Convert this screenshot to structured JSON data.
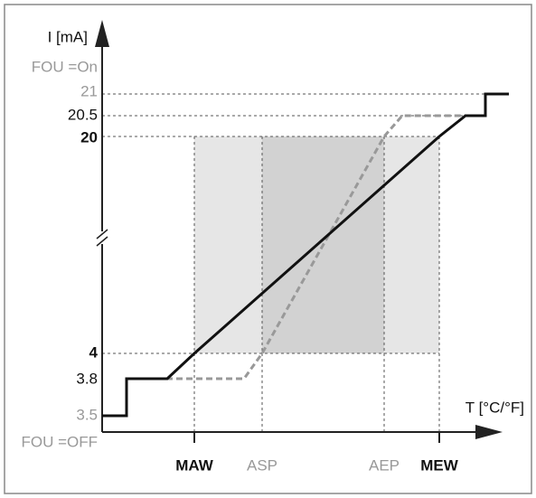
{
  "axis": {
    "y_label": "I [mA]",
    "x_label": "T [°C/°F]"
  },
  "y_labels": {
    "fou_on": "FOU =On",
    "l21": "21",
    "l205": "20.5",
    "l20": "20",
    "l4": "4",
    "l38": "3.8",
    "l35": "3.5",
    "fou_off": "FOU =OFF"
  },
  "x_labels": {
    "maw": "MAW",
    "asp": "ASP",
    "aep": "AEP",
    "mew": "MEW"
  }
}
